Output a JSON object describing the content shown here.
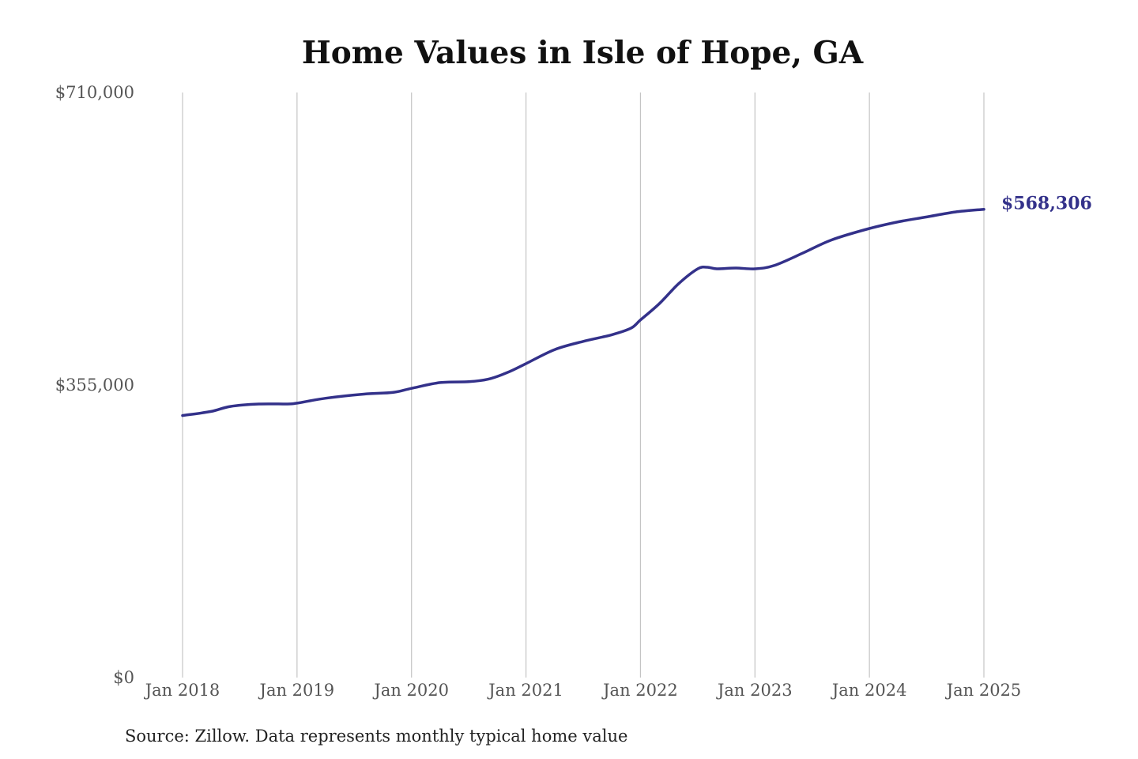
{
  "chart_data": {
    "type": "line",
    "title": "Home Values in Isle of Hope, GA",
    "xlabel": "",
    "ylabel": "",
    "x_ticks": [
      "Jan 2018",
      "Jan 2019",
      "Jan 2020",
      "Jan 2021",
      "Jan 2022",
      "Jan 2023",
      "Jan 2024",
      "Jan 2025"
    ],
    "y_ticks": [
      {
        "value": 0,
        "label": "$0"
      },
      {
        "value": 355000,
        "label": "$355,000"
      },
      {
        "value": 710000,
        "label": "$710,000"
      }
    ],
    "ylim": [
      0,
      710000
    ],
    "xlim": [
      "2018-01",
      "2025-01"
    ],
    "grid": {
      "vertical": true,
      "horizontal": false
    },
    "series": [
      {
        "color": "#33318a",
        "end_label": "$568,306",
        "points": [
          {
            "x": "2018-01",
            "y": 318000
          },
          {
            "x": "2018-04",
            "y": 323000
          },
          {
            "x": "2018-06",
            "y": 329000
          },
          {
            "x": "2018-09",
            "y": 332000
          },
          {
            "x": "2018-12",
            "y": 332000
          },
          {
            "x": "2019-01",
            "y": 333000
          },
          {
            "x": "2019-04",
            "y": 339000
          },
          {
            "x": "2019-08",
            "y": 344000
          },
          {
            "x": "2019-11",
            "y": 346000
          },
          {
            "x": "2020-01",
            "y": 351000
          },
          {
            "x": "2020-04",
            "y": 358000
          },
          {
            "x": "2020-07",
            "y": 359000
          },
          {
            "x": "2020-09",
            "y": 362000
          },
          {
            "x": "2020-11",
            "y": 370000
          },
          {
            "x": "2021-01",
            "y": 381000
          },
          {
            "x": "2021-04",
            "y": 398000
          },
          {
            "x": "2021-07",
            "y": 408000
          },
          {
            "x": "2021-10",
            "y": 416000
          },
          {
            "x": "2021-12",
            "y": 424000
          },
          {
            "x": "2022-01",
            "y": 434000
          },
          {
            "x": "2022-03",
            "y": 454000
          },
          {
            "x": "2022-05",
            "y": 478000
          },
          {
            "x": "2022-07",
            "y": 496000
          },
          {
            "x": "2022-08",
            "y": 498000
          },
          {
            "x": "2022-09",
            "y": 496000
          },
          {
            "x": "2022-11",
            "y": 497000
          },
          {
            "x": "2023-01",
            "y": 496000
          },
          {
            "x": "2023-03",
            "y": 500000
          },
          {
            "x": "2023-06",
            "y": 515000
          },
          {
            "x": "2023-09",
            "y": 531000
          },
          {
            "x": "2024-01",
            "y": 545000
          },
          {
            "x": "2024-04",
            "y": 553000
          },
          {
            "x": "2024-07",
            "y": 559000
          },
          {
            "x": "2024-10",
            "y": 565000
          },
          {
            "x": "2025-01",
            "y": 568306
          }
        ]
      }
    ]
  },
  "source_text": "Source: Zillow. Data represents monthly typical home value"
}
